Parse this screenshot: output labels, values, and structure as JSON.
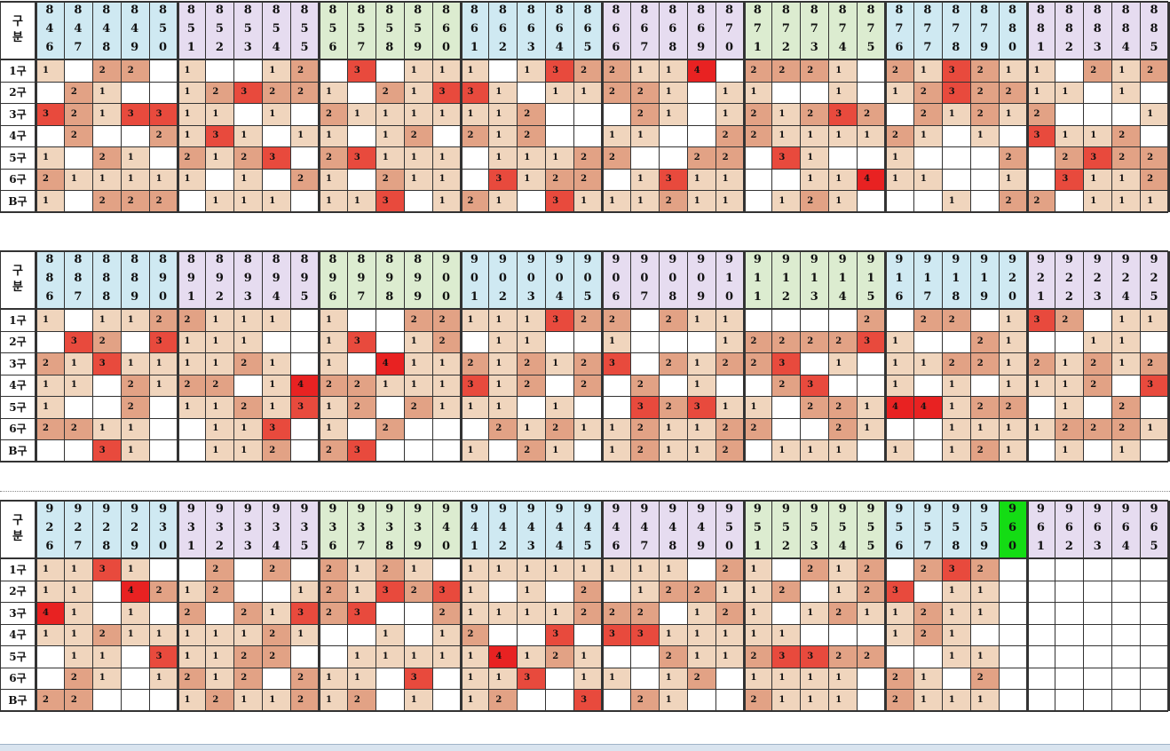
{
  "labels": {
    "header_top": "구",
    "header_bottom": "분"
  },
  "row_labels": [
    "1구",
    "2구",
    "3구",
    "4구",
    "5구",
    "6구",
    "B구"
  ],
  "colors": {
    "level_1": "#f0d5bd",
    "level_2": "#e2a285",
    "level_3": "#e84a3d",
    "level_4": "#e82222",
    "current_column": "#14dc14",
    "group_tints": [
      "#cfe9f2",
      "#e6dcf0",
      "#dcecd0"
    ],
    "grid_line": "#333333"
  },
  "tables": [
    {
      "columns": [
        "846",
        "847",
        "848",
        "849",
        "850",
        "851",
        "852",
        "853",
        "854",
        "855",
        "856",
        "857",
        "858",
        "859",
        "860",
        "861",
        "862",
        "863",
        "864",
        "865",
        "866",
        "867",
        "868",
        "869",
        "870",
        "871",
        "872",
        "873",
        "874",
        "875",
        "876",
        "877",
        "878",
        "879",
        "880",
        "881",
        "882",
        "883",
        "884",
        "885"
      ],
      "current_column": -1,
      "rows": [
        [
          1,
          0,
          2,
          2,
          0,
          1,
          0,
          0,
          1,
          2,
          0,
          3,
          0,
          1,
          1,
          1,
          0,
          1,
          3,
          2,
          2,
          1,
          1,
          4,
          0,
          2,
          2,
          2,
          1,
          0,
          2,
          1,
          3,
          2,
          1,
          1,
          0,
          2,
          1,
          2
        ],
        [
          0,
          2,
          1,
          0,
          0,
          1,
          2,
          3,
          2,
          2,
          1,
          0,
          2,
          1,
          3,
          3,
          1,
          0,
          1,
          1,
          2,
          2,
          1,
          0,
          1,
          1,
          0,
          0,
          1,
          0,
          1,
          2,
          3,
          2,
          2,
          1,
          1,
          0,
          1,
          0
        ],
        [
          3,
          2,
          1,
          3,
          3,
          1,
          1,
          0,
          1,
          0,
          2,
          1,
          1,
          1,
          1,
          1,
          1,
          2,
          0,
          0,
          0,
          2,
          1,
          0,
          1,
          2,
          1,
          2,
          3,
          2,
          0,
          2,
          1,
          2,
          1,
          2,
          0,
          0,
          0,
          1
        ],
        [
          0,
          2,
          0,
          0,
          2,
          1,
          3,
          1,
          0,
          1,
          1,
          0,
          1,
          2,
          0,
          2,
          1,
          2,
          0,
          0,
          1,
          1,
          0,
          0,
          2,
          2,
          1,
          1,
          1,
          1,
          2,
          1,
          0,
          1,
          0,
          3,
          1,
          1,
          2,
          0
        ],
        [
          1,
          0,
          2,
          1,
          0,
          2,
          1,
          2,
          3,
          0,
          2,
          3,
          1,
          1,
          1,
          0,
          1,
          1,
          1,
          2,
          2,
          0,
          0,
          2,
          2,
          0,
          3,
          1,
          0,
          0,
          1,
          0,
          0,
          0,
          2,
          0,
          2,
          3,
          2,
          2
        ],
        [
          2,
          1,
          1,
          1,
          1,
          1,
          0,
          1,
          0,
          2,
          1,
          0,
          2,
          1,
          1,
          0,
          3,
          1,
          2,
          2,
          0,
          1,
          3,
          1,
          1,
          0,
          0,
          1,
          1,
          4,
          1,
          1,
          0,
          0,
          1,
          0,
          3,
          1,
          1,
          2
        ],
        [
          1,
          0,
          2,
          2,
          2,
          0,
          1,
          1,
          1,
          0,
          1,
          1,
          3,
          0,
          1,
          2,
          1,
          0,
          3,
          1,
          1,
          1,
          2,
          1,
          1,
          0,
          1,
          2,
          1,
          0,
          0,
          0,
          1,
          0,
          2,
          2,
          0,
          1,
          1,
          1
        ]
      ]
    },
    {
      "columns": [
        "886",
        "887",
        "888",
        "889",
        "890",
        "891",
        "892",
        "893",
        "894",
        "895",
        "896",
        "897",
        "898",
        "899",
        "900",
        "901",
        "902",
        "903",
        "904",
        "905",
        "906",
        "907",
        "908",
        "909",
        "910",
        "911",
        "912",
        "913",
        "914",
        "915",
        "916",
        "917",
        "918",
        "919",
        "920",
        "921",
        "922",
        "923",
        "924",
        "925"
      ],
      "current_column": -1,
      "rows": [
        [
          1,
          0,
          1,
          1,
          2,
          2,
          1,
          1,
          1,
          0,
          1,
          0,
          0,
          2,
          2,
          1,
          1,
          1,
          3,
          2,
          2,
          0,
          2,
          1,
          1,
          0,
          0,
          0,
          0,
          2,
          0,
          2,
          2,
          0,
          1,
          3,
          2,
          0,
          1,
          1
        ],
        [
          0,
          3,
          2,
          0,
          3,
          1,
          1,
          1,
          0,
          0,
          1,
          3,
          0,
          1,
          2,
          0,
          1,
          1,
          0,
          0,
          1,
          0,
          0,
          0,
          1,
          2,
          2,
          2,
          2,
          3,
          1,
          0,
          0,
          2,
          1,
          0,
          0,
          1,
          1,
          0
        ],
        [
          2,
          1,
          3,
          1,
          1,
          1,
          1,
          2,
          1,
          0,
          1,
          0,
          4,
          1,
          1,
          2,
          1,
          2,
          1,
          2,
          3,
          0,
          2,
          1,
          2,
          2,
          3,
          0,
          1,
          0,
          1,
          1,
          2,
          2,
          1,
          2,
          1,
          2,
          1,
          2
        ],
        [
          1,
          1,
          0,
          2,
          1,
          2,
          2,
          0,
          1,
          4,
          2,
          2,
          1,
          1,
          1,
          3,
          1,
          2,
          0,
          2,
          0,
          2,
          0,
          1,
          0,
          0,
          2,
          3,
          0,
          0,
          1,
          0,
          1,
          0,
          1,
          1,
          1,
          2,
          0,
          3
        ],
        [
          1,
          0,
          0,
          2,
          0,
          1,
          1,
          2,
          1,
          3,
          1,
          2,
          0,
          2,
          1,
          1,
          1,
          0,
          1,
          0,
          0,
          3,
          2,
          3,
          1,
          1,
          0,
          2,
          2,
          1,
          4,
          4,
          1,
          2,
          2,
          0,
          1,
          0,
          2,
          0
        ],
        [
          2,
          2,
          1,
          1,
          0,
          0,
          1,
          1,
          3,
          0,
          1,
          0,
          2,
          0,
          0,
          0,
          2,
          1,
          2,
          1,
          1,
          2,
          1,
          1,
          2,
          2,
          0,
          0,
          2,
          1,
          0,
          0,
          1,
          1,
          1,
          1,
          2,
          2,
          2,
          1
        ],
        [
          0,
          0,
          3,
          1,
          0,
          0,
          1,
          1,
          2,
          0,
          2,
          3,
          0,
          0,
          0,
          1,
          0,
          2,
          1,
          0,
          1,
          2,
          1,
          1,
          2,
          0,
          1,
          1,
          1,
          0,
          1,
          0,
          1,
          2,
          1,
          0,
          1,
          0,
          1,
          0
        ]
      ]
    },
    {
      "columns": [
        "926",
        "927",
        "928",
        "929",
        "930",
        "931",
        "932",
        "933",
        "934",
        "935",
        "936",
        "937",
        "938",
        "939",
        "940",
        "941",
        "942",
        "943",
        "944",
        "945",
        "946",
        "947",
        "948",
        "949",
        "950",
        "951",
        "952",
        "953",
        "954",
        "955",
        "956",
        "957",
        "958",
        "959",
        "960",
        "961",
        "962",
        "963",
        "964",
        "965"
      ],
      "current_column": 34,
      "rows": [
        [
          1,
          1,
          3,
          1,
          0,
          0,
          2,
          0,
          2,
          0,
          2,
          1,
          2,
          1,
          0,
          1,
          1,
          1,
          1,
          1,
          1,
          1,
          1,
          0,
          2,
          1,
          0,
          2,
          1,
          2,
          0,
          2,
          3,
          2,
          0,
          0,
          0,
          0,
          0,
          0
        ],
        [
          1,
          1,
          0,
          4,
          2,
          1,
          2,
          0,
          0,
          1,
          2,
          1,
          3,
          2,
          3,
          1,
          0,
          1,
          0,
          2,
          0,
          1,
          2,
          2,
          1,
          1,
          2,
          0,
          1,
          2,
          3,
          0,
          1,
          1,
          0,
          0,
          0,
          0,
          0,
          0
        ],
        [
          4,
          1,
          0,
          1,
          0,
          2,
          0,
          2,
          1,
          3,
          2,
          3,
          0,
          0,
          2,
          1,
          1,
          1,
          1,
          2,
          2,
          2,
          0,
          1,
          2,
          1,
          0,
          1,
          2,
          1,
          1,
          2,
          1,
          1,
          0,
          0,
          0,
          0,
          0,
          0
        ],
        [
          1,
          1,
          2,
          1,
          1,
          1,
          1,
          1,
          2,
          1,
          0,
          0,
          1,
          0,
          1,
          2,
          0,
          0,
          3,
          0,
          3,
          3,
          1,
          1,
          1,
          1,
          1,
          0,
          0,
          0,
          1,
          2,
          1,
          0,
          0,
          0,
          0,
          0,
          0,
          0
        ],
        [
          0,
          1,
          1,
          0,
          3,
          1,
          1,
          2,
          2,
          0,
          0,
          1,
          1,
          1,
          1,
          1,
          4,
          1,
          2,
          1,
          0,
          0,
          2,
          1,
          1,
          2,
          3,
          3,
          2,
          2,
          0,
          0,
          1,
          1,
          0,
          0,
          0,
          0,
          0,
          0
        ],
        [
          0,
          2,
          1,
          0,
          1,
          2,
          1,
          2,
          0,
          2,
          1,
          1,
          0,
          3,
          0,
          1,
          1,
          3,
          0,
          1,
          1,
          0,
          1,
          2,
          0,
          1,
          1,
          1,
          1,
          0,
          2,
          1,
          0,
          2,
          0,
          0,
          0,
          0,
          0,
          0
        ],
        [
          2,
          2,
          0,
          0,
          0,
          1,
          2,
          1,
          1,
          2,
          1,
          2,
          0,
          1,
          0,
          1,
          2,
          0,
          0,
          3,
          0,
          2,
          1,
          0,
          0,
          2,
          1,
          1,
          1,
          0,
          2,
          1,
          1,
          1,
          0,
          0,
          0,
          0,
          0,
          0
        ]
      ]
    }
  ]
}
